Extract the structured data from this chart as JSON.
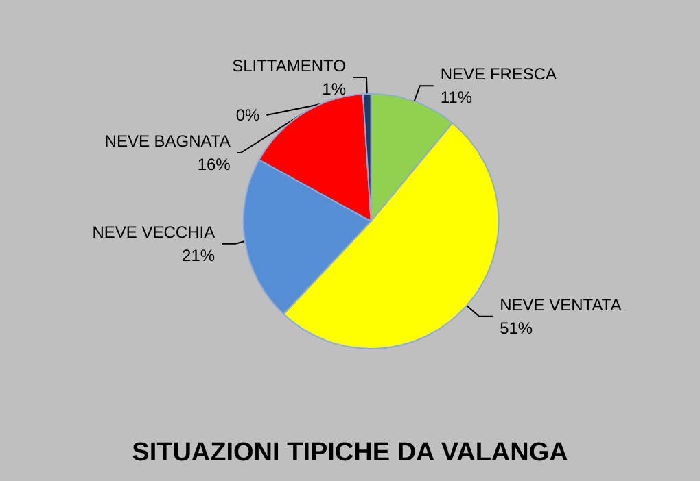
{
  "chart_data": {
    "type": "pie",
    "title": "SITUAZIONI TIPICHE DA VALANGA",
    "categories": [
      null,
      "NEVE FRESCA",
      "NEVE VENTATA",
      "NEVE VECCHIA",
      "NEVE BAGNATA",
      "SLITTAMENTO"
    ],
    "values": [
      0,
      11,
      51,
      21,
      16,
      1
    ],
    "value_labels": [
      "0%",
      "11%",
      "51%",
      "21%",
      "16%",
      "1%"
    ],
    "colors": [
      "#1f3864",
      "#92d050",
      "#ffff00",
      "#558ed5",
      "#ff0000",
      "#1f3864"
    ],
    "legend": false
  }
}
